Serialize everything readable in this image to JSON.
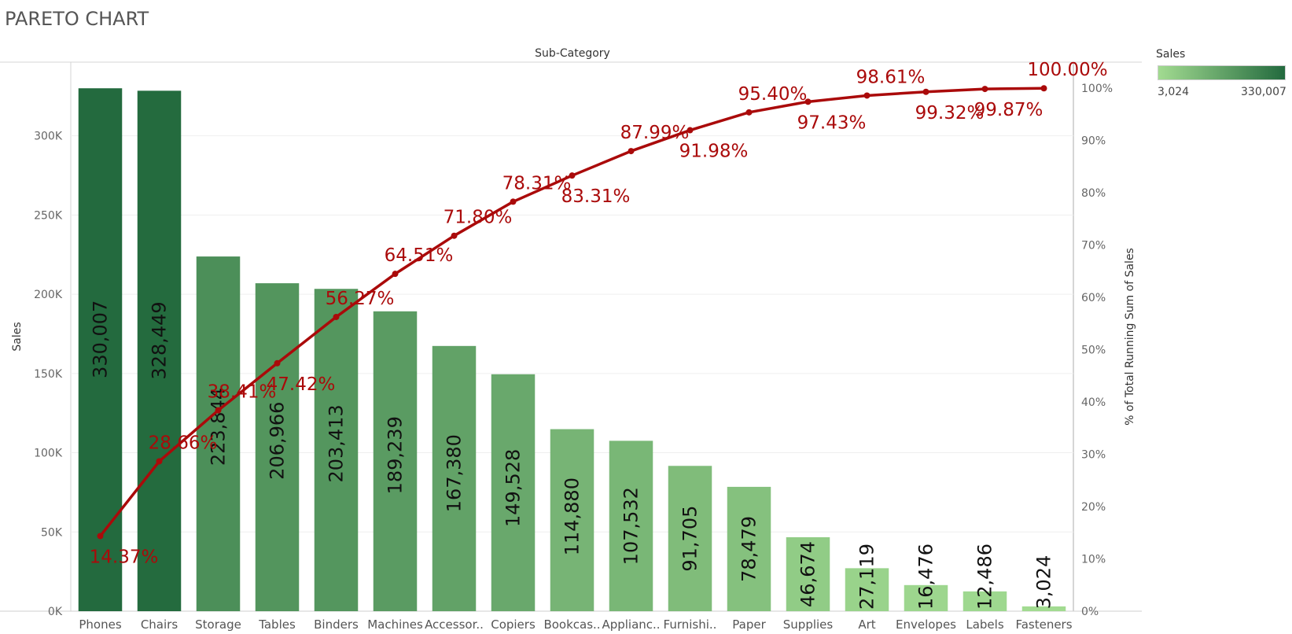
{
  "page_title": "PARETO CHART",
  "chart_data": {
    "type": "bar",
    "title": "PARETO CHART",
    "column_header": "Sub-Category",
    "ylabel": "Sales",
    "y2label": "% of Total Running Sum of Sales",
    "ylim": [
      0,
      346500
    ],
    "y2lim": [
      0,
      1.05
    ],
    "y_ticks": [
      0,
      50000,
      100000,
      150000,
      200000,
      250000,
      300000
    ],
    "y_tick_labels": [
      "0K",
      "50K",
      "100K",
      "150K",
      "200K",
      "250K",
      "300K"
    ],
    "y2_ticks": [
      0,
      0.1,
      0.2,
      0.3,
      0.4,
      0.5,
      0.6,
      0.7,
      0.8,
      0.9,
      1.0
    ],
    "y2_tick_labels": [
      "0%",
      "10%",
      "20%",
      "30%",
      "40%",
      "50%",
      "60%",
      "70%",
      "80%",
      "90%",
      "100%"
    ],
    "categories": [
      "Phones",
      "Chairs",
      "Storage",
      "Tables",
      "Binders",
      "Machines",
      "Accessor..",
      "Copiers",
      "Bookcas..",
      "Applianc..",
      "Furnishi..",
      "Paper",
      "Supplies",
      "Art",
      "Envelopes",
      "Labels",
      "Fasteners"
    ],
    "values": [
      330007,
      328449,
      223844,
      206966,
      203413,
      189239,
      167380,
      149528,
      114880,
      107532,
      91705,
      78479,
      46674,
      27119,
      16476,
      12486,
      3024
    ],
    "value_labels": [
      "330,007",
      "328,449",
      "223,844",
      "206,966",
      "203,413",
      "189,239",
      "167,380",
      "149,528",
      "114,880",
      "107,532",
      "91,705",
      "78,479",
      "46,674",
      "27,119",
      "16,476",
      "12,486",
      "3,024"
    ],
    "cumulative_pct": [
      0.1437,
      0.2866,
      0.3841,
      0.4742,
      0.5627,
      0.6451,
      0.718,
      0.7831,
      0.8331,
      0.8799,
      0.9198,
      0.954,
      0.9743,
      0.9861,
      0.9932,
      0.9987,
      1.0
    ],
    "cumulative_labels": [
      "14.37%",
      "28.66%",
      "38.41%",
      "47.42%",
      "56.27%",
      "64.51%",
      "71.80%",
      "78.31%",
      "83.31%",
      "87.99%",
      "91.98%",
      "95.40%",
      "97.43%",
      "98.61%",
      "99.32%",
      "99.87%",
      "100.00%"
    ],
    "cumulative_label_position": [
      "below",
      "above",
      "above",
      "below",
      "above",
      "above",
      "above",
      "above",
      "below",
      "above",
      "below",
      "above",
      "below",
      "above",
      "below",
      "below",
      "above"
    ],
    "line_color": "#AA0A0A",
    "bar_color_min": "#A2DB91",
    "bar_color_max": "#236A3E",
    "grid": true,
    "legend": {
      "title": "Sales",
      "position": "top-right",
      "min_label": "3,024",
      "max_label": "330,007"
    }
  }
}
